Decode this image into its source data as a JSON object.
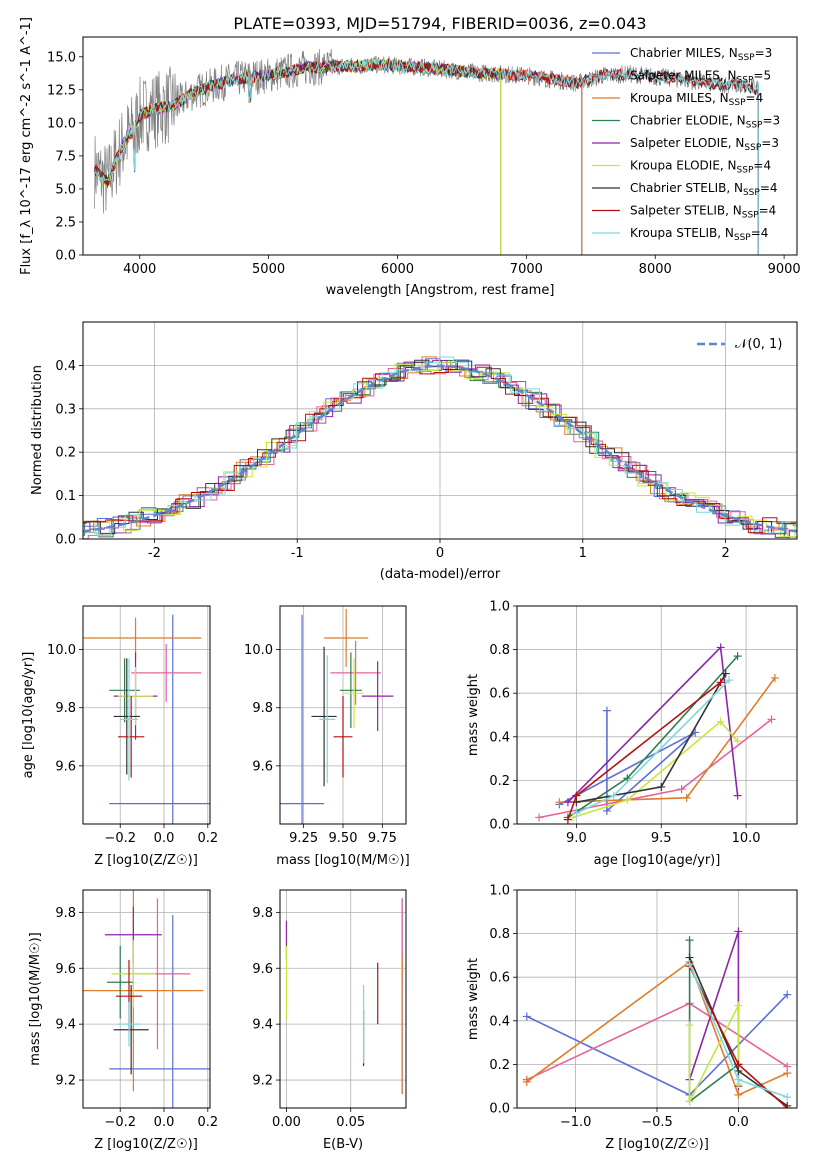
{
  "figure": {
    "title": "PLATE=0393, MJD=51794, FIBERID=0036, z=0.043"
  },
  "chart_data": [
    {
      "id": "spectrum",
      "type": "line",
      "xlabel": "wavelength [Angstrom, rest frame]",
      "ylabel": "Flux [f_λ 10^-17 erg cm^-2 s^-1 A^-1]",
      "xlim": [
        3560,
        9100
      ],
      "ylim": [
        0,
        16.5
      ],
      "xticks": [
        4000,
        5000,
        6000,
        7000,
        8000,
        9000
      ],
      "yticks": [
        0.0,
        2.5,
        5.0,
        7.5,
        10.0,
        12.5,
        15.0
      ],
      "ytick_labels": [
        "0.0",
        "2.5",
        "5.0",
        "7.5",
        "10.0",
        "12.5",
        "15.0"
      ],
      "legend_position": "top-right",
      "data_color": "#808080",
      "data_curve": {
        "x": [
          3650,
          3700,
          3750,
          3800,
          3850,
          3900,
          3950,
          4000,
          4100,
          4200,
          4300,
          4400,
          4500,
          4600,
          4700,
          4800,
          4900,
          5000,
          5100,
          5200,
          5300,
          5400,
          5500,
          5600,
          5700,
          5800,
          5900,
          6000,
          6200,
          6400,
          6600,
          6800,
          7000,
          7200,
          7400,
          7600,
          7800,
          8000,
          8200,
          8400,
          8600,
          8800
        ],
        "y": [
          6.5,
          6.0,
          5.5,
          6.8,
          8.0,
          8.8,
          9.5,
          10.5,
          11.0,
          11.2,
          11.5,
          12.2,
          12.6,
          12.9,
          13.2,
          13.4,
          13.5,
          13.6,
          13.8,
          14.0,
          14.2,
          14.2,
          14.3,
          14.3,
          14.3,
          14.4,
          14.4,
          14.3,
          14.2,
          14.0,
          13.8,
          13.7,
          13.6,
          13.3,
          13.0,
          13.6,
          13.7,
          13.5,
          13.3,
          13.0,
          12.9,
          12.6
        ]
      },
      "series": [
        {
          "name": "Chabrier MILES, N_SSP=3",
          "color": "#5b6fd6",
          "end_x": 7430
        },
        {
          "name": "Salpeter MILES, N_SSP=5",
          "color": "#e8609c",
          "end_x": 7430
        },
        {
          "name": "Kroupa MILES, N_SSP=4",
          "color": "#e07b28",
          "end_x": 7430
        },
        {
          "name": "Chabrier ELODIE, N_SSP=3",
          "color": "#2e7d4f",
          "end_x": 6800
        },
        {
          "name": "Salpeter ELODIE, N_SSP=3",
          "color": "#8e24aa",
          "end_x": 6800
        },
        {
          "name": "Kroupa ELODIE, N_SSP=4",
          "color": "#c8e640",
          "end_x": 6800
        },
        {
          "name": "Chabrier STELIB, N_SSP=4",
          "color": "#333333",
          "end_x": 8800
        },
        {
          "name": "Salpeter STELIB, N_SSP=4",
          "color": "#b31212",
          "end_x": 8800
        },
        {
          "name": "Kroupa STELIB, N_SSP=4",
          "color": "#7dd8de",
          "end_x": 8800
        }
      ],
      "legend_labels": [
        "Chabrier MILES, N",
        "Salpeter MILES, N",
        "Kroupa MILES, N",
        "Chabrier ELODIE, N",
        "Salpeter ELODIE, N",
        "Kroupa ELODIE, N",
        "Chabrier STELIB, N",
        "Salpeter STELIB, N",
        "Kroupa STELIB, N"
      ],
      "legend_subscript": "SSP",
      "legend_counts": [
        "=3",
        "=5",
        "=4",
        "=3",
        "=3",
        "=4",
        "=4",
        "=4",
        "=4"
      ]
    },
    {
      "id": "residuals",
      "type": "line",
      "xlabel": "(data-model)/error",
      "ylabel": "Normed distribution",
      "xlim": [
        -2.5,
        2.5
      ],
      "ylim": [
        0,
        0.5
      ],
      "xticks": [
        -2,
        -1,
        0,
        1,
        2
      ],
      "yticks": [
        0.0,
        0.1,
        0.2,
        0.3,
        0.4
      ],
      "ytick_labels": [
        "0.0",
        "0.1",
        "0.2",
        "0.3",
        "0.4"
      ],
      "grid": true,
      "legend_position": "top-right",
      "gaussian": {
        "name": "𝒩(0, 1)",
        "mean": 0,
        "sigma": 1,
        "color": "#5b86d6"
      }
    },
    {
      "id": "age-vs-z",
      "type": "scatter",
      "xlabel": "Z [log10(Z/Z☉)]",
      "ylabel": "age [log10(age/yr)]",
      "xlim": [
        -0.37,
        0.21
      ],
      "ylim": [
        9.4,
        10.15
      ],
      "xticks": [
        -0.2,
        0.0,
        0.2
      ],
      "xtick_labels": [
        "−0.2",
        "0.0",
        "0.2"
      ],
      "yticks": [
        9.6,
        9.8,
        10.0
      ],
      "ytick_labels": [
        "9.6",
        "9.8",
        "10.0"
      ],
      "grid": true,
      "points": [
        {
          "color": "#5b6fd6",
          "x": 0.04,
          "y": 9.47,
          "xerr": 0.29,
          "yerr": 0.65
        },
        {
          "color": "#e8609c",
          "x": 0.01,
          "y": 9.92,
          "xerr": 0.16,
          "yerr": 0.1
        },
        {
          "color": "#e07b28",
          "x": -0.13,
          "y": 10.04,
          "xerr": 0.3,
          "yerr": 0.07
        },
        {
          "color": "#2e7d4f",
          "x": -0.18,
          "y": 9.86,
          "xerr": 0.07,
          "yerr": 0.11
        },
        {
          "color": "#8e24aa",
          "x": -0.13,
          "y": 9.84,
          "xerr": 0.1,
          "yerr": 0.15
        },
        {
          "color": "#c8e640",
          "x": -0.13,
          "y": 9.84,
          "xerr": 0.08,
          "yerr": 0.1
        },
        {
          "color": "#333333",
          "x": -0.17,
          "y": 9.77,
          "xerr": 0.06,
          "yerr": 0.2
        },
        {
          "color": "#b31212",
          "x": -0.15,
          "y": 9.7,
          "xerr": 0.06,
          "yerr": 0.14
        },
        {
          "color": "#7dd8de",
          "x": -0.16,
          "y": 9.76,
          "xerr": 0.04,
          "yerr": 0.21
        }
      ]
    },
    {
      "id": "age-vs-mass",
      "type": "scatter",
      "xlabel": "mass [log10(M/M☉)]",
      "ylabel": "",
      "xlim": [
        9.1,
        9.9
      ],
      "ylim": [
        9.4,
        10.15
      ],
      "xticks": [
        9.25,
        9.5,
        9.75
      ],
      "xtick_labels": [
        "9.25",
        "9.50",
        "9.75"
      ],
      "yticks": [
        9.6,
        9.8,
        10.0
      ],
      "ytick_labels": [
        "9.6",
        "9.8",
        "10.0"
      ],
      "grid": true,
      "points": [
        {
          "color": "#5b6fd6",
          "x": 9.24,
          "y": 9.47,
          "xerr": 0.14,
          "yerr": 0.65
        },
        {
          "color": "#e8609c",
          "x": 9.58,
          "y": 9.92,
          "xerr": 0.16,
          "yerr": 0.11
        },
        {
          "color": "#e07b28",
          "x": 9.52,
          "y": 10.04,
          "xerr": 0.14,
          "yerr": 0.1
        },
        {
          "color": "#2e7d4f",
          "x": 9.55,
          "y": 9.86,
          "xerr": 0.07,
          "yerr": 0.13
        },
        {
          "color": "#8e24aa",
          "x": 9.72,
          "y": 9.84,
          "xerr": 0.1,
          "yerr": 0.12
        },
        {
          "color": "#c8e640",
          "x": 9.57,
          "y": 9.85,
          "xerr": 0.06,
          "yerr": 0.12
        },
        {
          "color": "#333333",
          "x": 9.38,
          "y": 9.77,
          "xerr": 0.08,
          "yerr": 0.24
        },
        {
          "color": "#b31212",
          "x": 9.5,
          "y": 9.7,
          "xerr": 0.06,
          "yerr": 0.14
        },
        {
          "color": "#7dd8de",
          "x": 9.4,
          "y": 9.76,
          "xerr": 0.05,
          "yerr": 0.22
        }
      ]
    },
    {
      "id": "weight-vs-age",
      "type": "line",
      "xlabel": "age [log10(age/yr)]",
      "ylabel": "mass weight",
      "xlim": [
        8.65,
        10.3
      ],
      "ylim": [
        0,
        1.0
      ],
      "xticks": [
        9.0,
        9.5,
        10.0
      ],
      "xtick_labels": [
        "9.0",
        "9.5",
        "10.0"
      ],
      "yticks": [
        0.0,
        0.2,
        0.4,
        0.6,
        0.8,
        1.0
      ],
      "ytick_labels": [
        "0.0",
        "0.2",
        "0.4",
        "0.6",
        "0.8",
        "1.0"
      ],
      "grid": true,
      "series": [
        {
          "color": "#5b6fd6",
          "x": [
            9.18,
            9.18,
            9.7,
            8.9
          ],
          "y": [
            0.52,
            0.06,
            0.42,
            0.09
          ]
        },
        {
          "color": "#e8609c",
          "x": [
            8.78,
            9.62,
            10.15
          ],
          "y": [
            0.03,
            0.16,
            0.48
          ]
        },
        {
          "color": "#e07b28",
          "x": [
            8.9,
            9.65,
            10.17
          ],
          "y": [
            0.1,
            0.12,
            0.67
          ]
        },
        {
          "color": "#2e7d4f",
          "x": [
            8.95,
            9.3,
            9.95
          ],
          "y": [
            0.03,
            0.21,
            0.77
          ]
        },
        {
          "color": "#8e24aa",
          "x": [
            8.95,
            9.85,
            9.95
          ],
          "y": [
            0.1,
            0.81,
            0.13
          ]
        },
        {
          "color": "#c8e640",
          "x": [
            8.98,
            9.3,
            9.85,
            9.95
          ],
          "y": [
            0.03,
            0.11,
            0.47,
            0.38
          ]
        },
        {
          "color": "#333333",
          "x": [
            9.0,
            9.5,
            9.88
          ],
          "y": [
            0.1,
            0.17,
            0.69
          ]
        },
        {
          "color": "#b31212",
          "x": [
            8.95,
            9.0,
            9.85
          ],
          "y": [
            0.02,
            0.13,
            0.65
          ]
        },
        {
          "color": "#7dd8de",
          "x": [
            9.0,
            9.22,
            9.9
          ],
          "y": [
            0.05,
            0.13,
            0.66
          ]
        }
      ]
    },
    {
      "id": "mass-vs-z",
      "type": "scatter",
      "xlabel": "Z [log10(Z/Z☉)]",
      "ylabel": "mass [log10(M/M☉)]",
      "xlim": [
        -0.37,
        0.21
      ],
      "ylim": [
        9.1,
        9.88
      ],
      "xticks": [
        -0.2,
        0.0,
        0.2
      ],
      "xtick_labels": [
        "−0.2",
        "0.0",
        "0.2"
      ],
      "yticks": [
        9.2,
        9.4,
        9.6,
        9.8
      ],
      "ytick_labels": [
        "9.2",
        "9.4",
        "9.6",
        "9.8"
      ],
      "grid": true,
      "points": [
        {
          "color": "#5b6fd6",
          "x": 0.04,
          "y": 9.24,
          "xerr": 0.29,
          "yerr": 0.55
        },
        {
          "color": "#e8609c",
          "x": -0.03,
          "y": 9.58,
          "xerr": 0.15,
          "yerr": 0.27
        },
        {
          "color": "#e07b28",
          "x": -0.14,
          "y": 9.52,
          "xerr": 0.32,
          "yerr": 0.36
        },
        {
          "color": "#2e7d4f",
          "x": -0.2,
          "y": 9.55,
          "xerr": 0.06,
          "yerr": 0.13
        },
        {
          "color": "#8e24aa",
          "x": -0.14,
          "y": 9.72,
          "xerr": 0.13,
          "yerr": 0.1
        },
        {
          "color": "#c8e640",
          "x": -0.14,
          "y": 9.58,
          "xerr": 0.1,
          "yerr": 0.12
        },
        {
          "color": "#333333",
          "x": -0.15,
          "y": 9.38,
          "xerr": 0.08,
          "yerr": 0.16
        },
        {
          "color": "#b31212",
          "x": -0.16,
          "y": 9.5,
          "xerr": 0.06,
          "yerr": 0.13
        },
        {
          "color": "#7dd8de",
          "x": -0.16,
          "y": 9.4,
          "xerr": 0.05,
          "yerr": 0.08
        }
      ]
    },
    {
      "id": "mass-vs-ebv",
      "type": "scatter",
      "xlabel": "E(B-V)",
      "ylabel": "",
      "xlim": [
        -0.005,
        0.093
      ],
      "ylim": [
        9.1,
        9.88
      ],
      "xticks": [
        0.0,
        0.05
      ],
      "xtick_labels": [
        "0.00",
        "0.05"
      ],
      "yticks": [
        9.2,
        9.4,
        9.6,
        9.8
      ],
      "ytick_labels": [
        "9.2",
        "9.4",
        "9.6",
        "9.8"
      ],
      "grid": true,
      "points": [
        {
          "color": "#5b6fd6",
          "x": 0.09,
          "y": 9.5,
          "yerr": 0.35
        },
        {
          "color": "#e8609c",
          "x": 0.09,
          "y": 9.7,
          "yerr": 0.15
        },
        {
          "color": "#e07b28",
          "x": 0.09,
          "y": 9.4,
          "yerr": 0.25
        },
        {
          "color": "#8e24aa",
          "x": 0.0,
          "y": 9.7,
          "yerr": 0.07
        },
        {
          "color": "#c8e640",
          "x": 0.0,
          "y": 9.55,
          "yerr": 0.13
        },
        {
          "color": "#333333",
          "x": 0.06,
          "y": 9.35,
          "yerr": 0.1
        },
        {
          "color": "#b31212",
          "x": 0.071,
          "y": 9.51,
          "yerr": 0.11
        },
        {
          "color": "#7dd8de",
          "x": 0.06,
          "y": 9.4,
          "yerr": 0.14
        }
      ]
    },
    {
      "id": "weight-vs-z",
      "type": "line",
      "xlabel": "Z [log10(Z/Z☉)]",
      "ylabel": "mass weight",
      "xlim": [
        -1.36,
        0.36
      ],
      "ylim": [
        0,
        1.0
      ],
      "xticks": [
        -1.0,
        -0.5,
        0.0
      ],
      "xtick_labels": [
        "−1.0",
        "−0.5",
        "0.0"
      ],
      "yticks": [
        0.0,
        0.2,
        0.4,
        0.6,
        0.8,
        1.0
      ],
      "ytick_labels": [
        "0.0",
        "0.2",
        "0.4",
        "0.6",
        "0.8",
        "1.0"
      ],
      "grid": true,
      "series": [
        {
          "color": "#5b6fd6",
          "x": [
            -1.3,
            -0.3,
            0.3
          ],
          "y": [
            0.42,
            0.06,
            0.52
          ]
        },
        {
          "color": "#e8609c",
          "x": [
            -1.3,
            -0.3,
            0.3
          ],
          "y": [
            0.13,
            0.48,
            0.19
          ]
        },
        {
          "color": "#e07b28",
          "x": [
            -1.3,
            -0.3,
            0.0,
            0.3
          ],
          "y": [
            0.12,
            0.67,
            0.06,
            0.16
          ]
        },
        {
          "color": "#2e7d4f",
          "x": [
            -0.3,
            -0.3,
            0.0
          ],
          "y": [
            0.77,
            0.03,
            0.2
          ]
        },
        {
          "color": "#8e24aa",
          "x": [
            -0.3,
            0.0,
            0.0
          ],
          "y": [
            0.13,
            0.81,
            0.1
          ]
        },
        {
          "color": "#c8e640",
          "x": [
            -0.3,
            -0.3,
            0.0,
            0.0
          ],
          "y": [
            0.38,
            0.03,
            0.47,
            0.11
          ]
        },
        {
          "color": "#333333",
          "x": [
            -0.3,
            0.0,
            0.3
          ],
          "y": [
            0.69,
            0.17,
            0.01
          ]
        },
        {
          "color": "#b31212",
          "x": [
            -0.3,
            0.0,
            0.3
          ],
          "y": [
            0.65,
            0.2,
            0.0
          ]
        },
        {
          "color": "#7dd8de",
          "x": [
            -0.3,
            0.0,
            0.3
          ],
          "y": [
            0.66,
            0.13,
            0.05
          ]
        }
      ]
    }
  ]
}
